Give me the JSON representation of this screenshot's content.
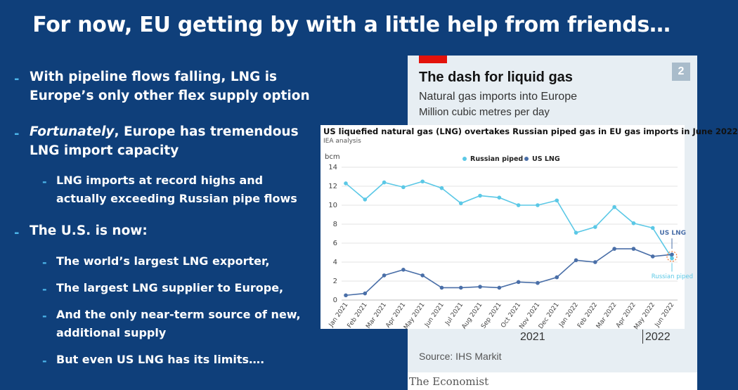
{
  "slide": {
    "title": "For now, EU getting by with a little help from friends…",
    "bullets": {
      "b1": "With pipeline flows falling, LNG is Europe’s only other flex supply option",
      "b2_em": "Fortunately",
      "b2_rest": ", Europe has tremendous LNG import capacity",
      "b2_sub1": "LNG imports at record highs and actually exceeding Russian pipe flows",
      "b3": "The U.S. is now:",
      "b3_sub1": "The world’s largest LNG exporter,",
      "b3_sub2": "The largest LNG supplier to Europe,",
      "b3_sub3": "And the only near-term source of new, additional supply",
      "b3_sub4": "But even US LNG has its limits….",
      "dash": "-"
    }
  },
  "economist": {
    "title": "The dash for liquid gas",
    "subtitle": "Natural gas imports into Europe",
    "unit": "Million cubic metres per day",
    "chart_number": "2",
    "year_2021": "2021",
    "year_2022": "2022",
    "source": "Source: IHS Markit",
    "brand": "The Economist"
  },
  "chart_data": {
    "type": "line",
    "title": "US liquefied natural gas (LNG) overtakes Russian piped gas in EU gas imports in June 2022",
    "subtitle": "IEA analysis",
    "ylabel": "bcm",
    "ylim": [
      0,
      14
    ],
    "yticks": [
      "0",
      "2",
      "4",
      "6",
      "8",
      "10",
      "12",
      "14"
    ],
    "categories": [
      "Jan 2021",
      "Feb 2021",
      "Mar 2021",
      "Apr 2021",
      "May 2021",
      "Jun 2021",
      "Jul 2021",
      "Aug 2021",
      "Sep 2021",
      "Oct 2021",
      "Nov 2021",
      "Dec 2021",
      "Jan 2022",
      "Feb 2022",
      "Mar 2022",
      "Apr 2022",
      "May 2022",
      "Jun 2022"
    ],
    "series": [
      {
        "name": "Russian piped",
        "color": "#5bc8e6",
        "values": [
          12.3,
          10.6,
          12.4,
          11.9,
          12.5,
          11.8,
          10.2,
          11.0,
          10.8,
          10.0,
          10.0,
          10.5,
          7.1,
          7.7,
          9.8,
          8.1,
          7.6,
          4.4
        ]
      },
      {
        "name": "US LNG",
        "color": "#4a6fa8",
        "values": [
          0.5,
          0.7,
          2.6,
          3.2,
          2.6,
          1.3,
          1.3,
          1.4,
          1.3,
          1.9,
          1.8,
          2.4,
          4.2,
          4.0,
          5.4,
          5.4,
          4.6,
          4.8
        ]
      }
    ],
    "annotations": [
      "US LNG",
      "Russian piped"
    ],
    "grid": true,
    "legend": "top-center"
  }
}
